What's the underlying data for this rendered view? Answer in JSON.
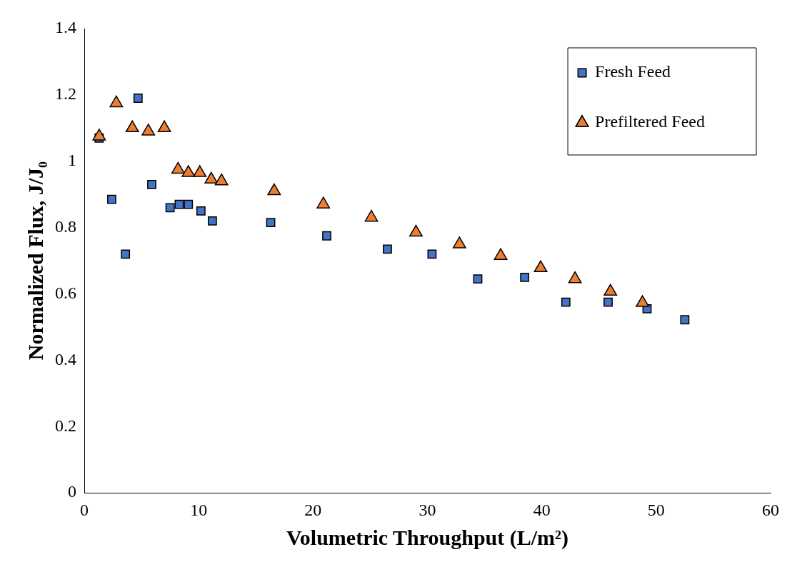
{
  "chart_data": {
    "type": "scatter",
    "xlabel": "Volumetric Throughput (L/m²)",
    "ylabel": "Normalized Flux, J/J₀",
    "xlim": [
      0,
      60
    ],
    "xticks": [
      0,
      10,
      20,
      30,
      40,
      50,
      60
    ],
    "ylim": [
      0,
      1.4
    ],
    "yticks": [
      0,
      0.2,
      0.4,
      0.6,
      0.8,
      1,
      1.2,
      1.4
    ],
    "grid": false,
    "legend": "top right",
    "series": [
      {
        "name": "Fresh Feed",
        "color": "#4472c4",
        "marker": "square",
        "x": [
          1.3,
          2.4,
          3.6,
          4.7,
          5.9,
          7.5,
          8.3,
          9.1,
          10.2,
          11.2,
          16.3,
          21.2,
          26.5,
          30.4,
          34.4,
          38.5,
          42.1,
          45.8,
          49.2,
          52.5
        ],
        "values": [
          1.07,
          0.885,
          0.72,
          1.19,
          0.93,
          0.86,
          0.87,
          0.87,
          0.85,
          0.82,
          0.815,
          0.775,
          0.735,
          0.72,
          0.645,
          0.65,
          0.575,
          0.575,
          0.555,
          0.522
        ]
      },
      {
        "name": "Prefiltered Feed",
        "color": "#ed7d31",
        "marker": "triangle",
        "x": [
          1.3,
          2.8,
          4.2,
          5.6,
          7.0,
          8.2,
          9.1,
          10.1,
          11.1,
          12.0,
          16.6,
          20.9,
          25.1,
          29.0,
          32.8,
          36.4,
          39.9,
          42.9,
          46.0,
          48.8
        ],
        "values": [
          1.075,
          1.175,
          1.1,
          1.09,
          1.1,
          0.975,
          0.965,
          0.965,
          0.945,
          0.94,
          0.91,
          0.87,
          0.83,
          0.785,
          0.75,
          0.715,
          0.678,
          0.645,
          0.607,
          0.573
        ]
      }
    ]
  }
}
